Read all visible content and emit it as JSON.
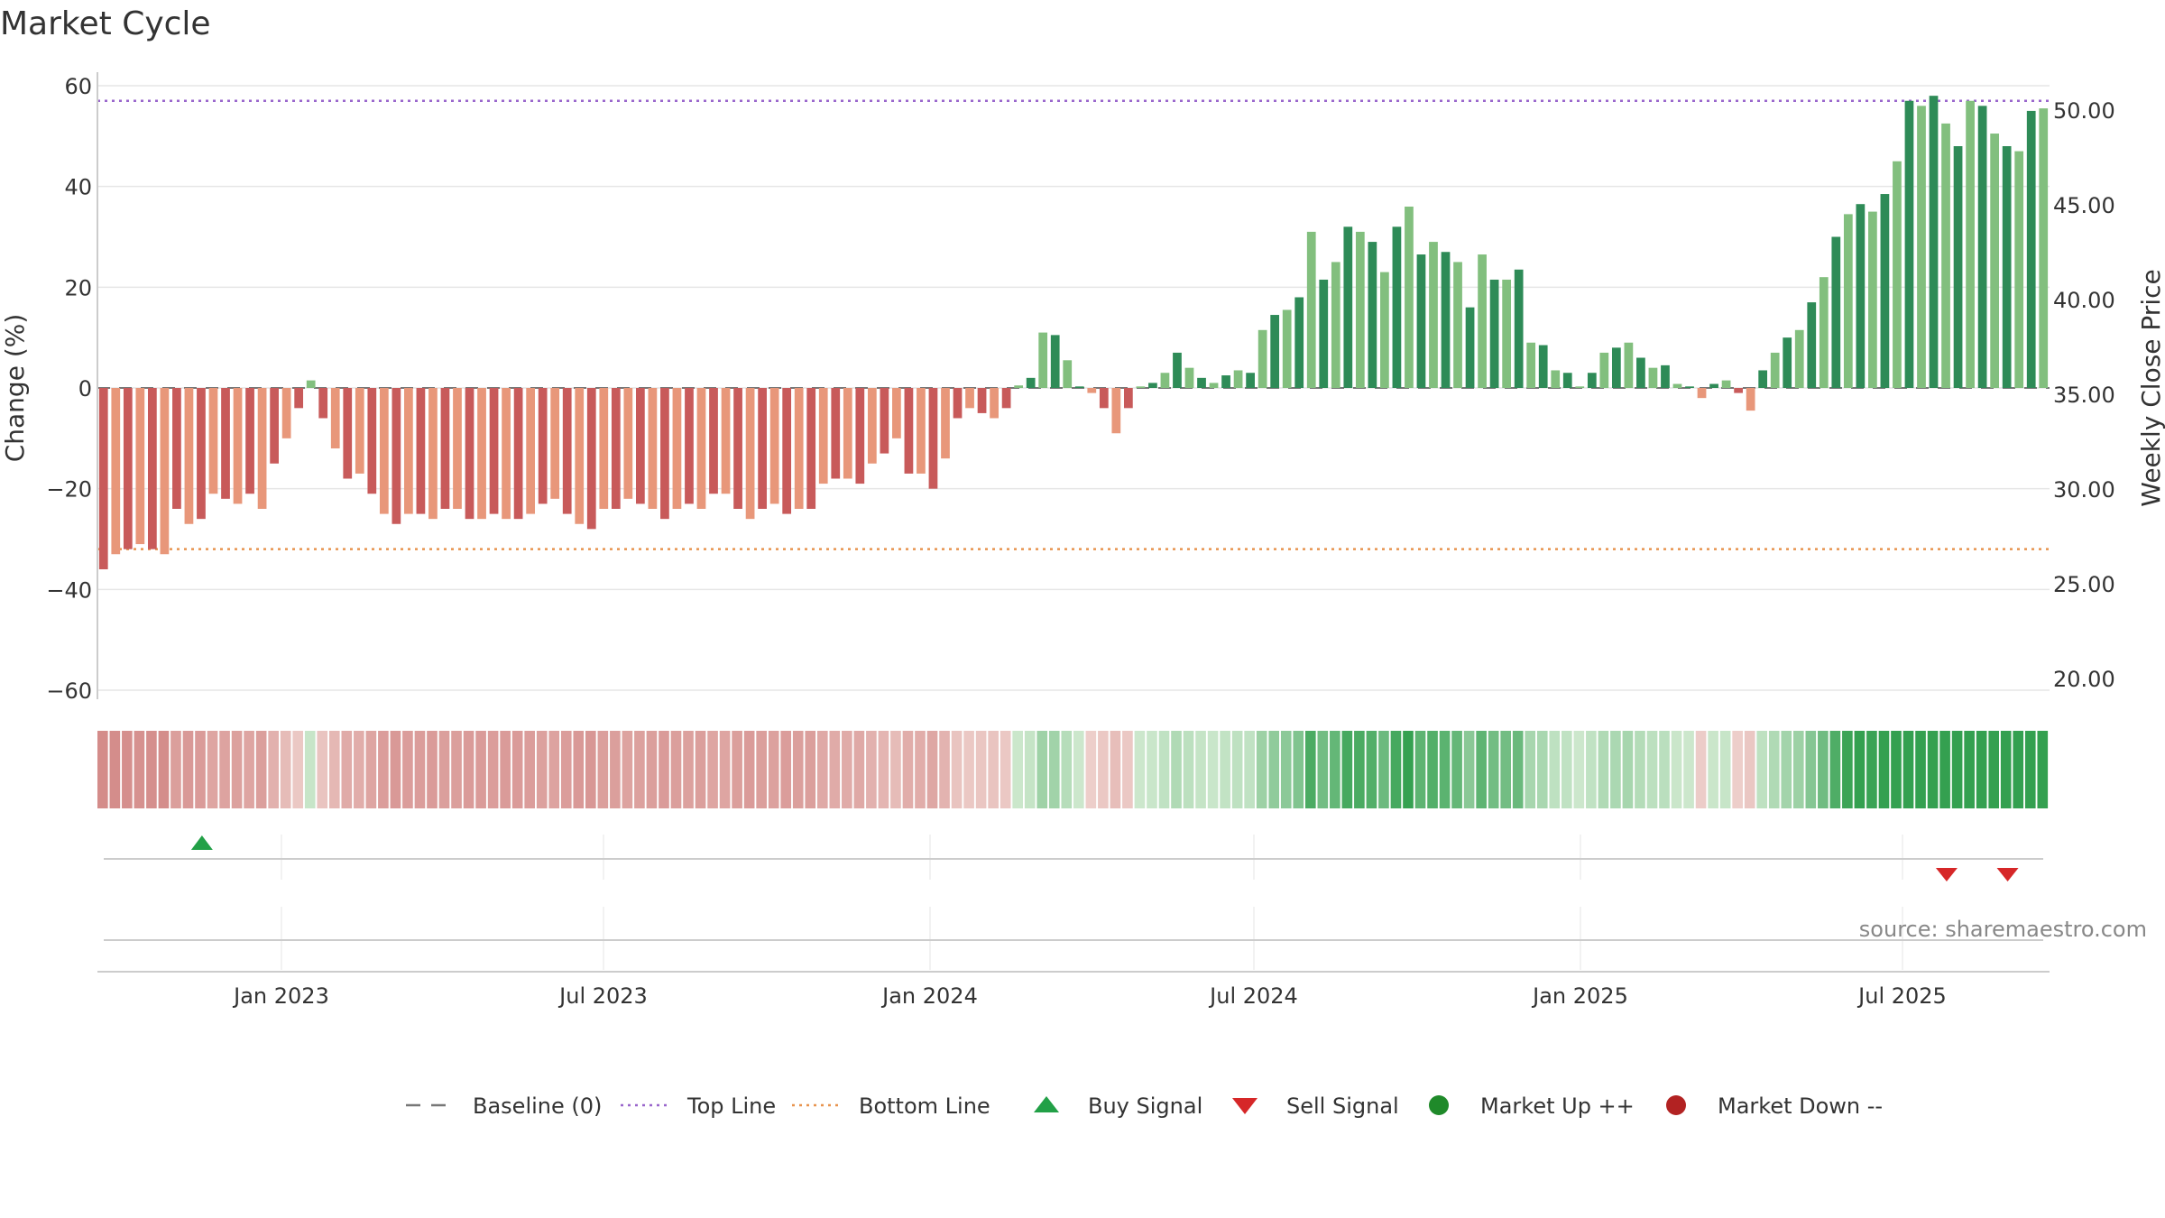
{
  "chart_data": {
    "type": "bar",
    "title": "Market Cycle",
    "ylabel_left": "Change (%)",
    "ylabel_right": "Weekly Close Price",
    "y_left_range": [
      -63,
      63
    ],
    "y_left_ticks": [
      60,
      40,
      20,
      0,
      -20,
      -40,
      -60
    ],
    "y_left_tick_labels": [
      "60",
      "40",
      "20",
      "0",
      "−20",
      "−40",
      "−60"
    ],
    "y_right_ticks": [
      50,
      45,
      40,
      35,
      30,
      25,
      20
    ],
    "y_right_tick_labels": [
      "50.00",
      "45.00",
      "40.00",
      "35.00",
      "30.00",
      "25.00",
      "20.00"
    ],
    "x_tick_labels": [
      "Jan 2023",
      "Jul 2023",
      "Jan 2024",
      "Jul 2024",
      "Jan 2025",
      "Jul 2025"
    ],
    "top_line": 57,
    "bottom_line": -32,
    "baseline": 0,
    "grid": true,
    "values": [
      -36,
      -33,
      -32,
      -31,
      -32,
      -33,
      -24,
      -27,
      -26,
      -21,
      -22,
      -23,
      -21,
      -24,
      -15,
      -10,
      -4,
      1.5,
      -6,
      -12,
      -18,
      -17,
      -21,
      -25,
      -27,
      -25,
      -25,
      -26,
      -24,
      -24,
      -26,
      -26,
      -25,
      -26,
      -26,
      -25,
      -23,
      -22,
      -25,
      -27,
      -28,
      -24,
      -24,
      -22,
      -23,
      -24,
      -26,
      -24,
      -23,
      -24,
      -21,
      -21,
      -24,
      -26,
      -24,
      -23,
      -25,
      -24,
      -24,
      -19,
      -18,
      -18,
      -19,
      -15,
      -13,
      -10,
      -17,
      -17,
      -20,
      -14,
      -6,
      -4,
      -5,
      -6,
      -4,
      0.5,
      2,
      11,
      10.5,
      5.5,
      0.3,
      -1,
      -4,
      -9,
      -4,
      0.3,
      1,
      3,
      7,
      4,
      2,
      1,
      2.5,
      3.5,
      3,
      11.5,
      14.5,
      15.5,
      18,
      31,
      21.5,
      25,
      32,
      31,
      29,
      23,
      32,
      36,
      26.5,
      29,
      27,
      25,
      16,
      26.5,
      21.5,
      21.5,
      23.5,
      9,
      8.5,
      3.5,
      3,
      0.3,
      3,
      7,
      8,
      9,
      6,
      4,
      4.5,
      0.8,
      0.3,
      -2,
      0.8,
      1.5,
      -1,
      -4.5,
      3.5,
      7,
      10,
      11.5,
      17,
      22,
      30,
      34.5,
      36.5,
      35,
      38.5,
      45,
      57,
      56,
      58,
      52.5,
      48,
      57,
      56,
      50.5,
      48,
      47,
      55,
      55.5
    ],
    "legend": [
      {
        "label": "Baseline (0)",
        "symbol": "dash",
        "color": "#777777"
      },
      {
        "label": "Top Line",
        "symbol": "dotted",
        "color": "#9966cc"
      },
      {
        "label": "Bottom Line",
        "symbol": "dotted",
        "color": "#e8944f"
      },
      {
        "label": "Buy Signal",
        "symbol": "triangle-up",
        "color": "#22a047"
      },
      {
        "label": "Sell Signal",
        "symbol": "triangle-down",
        "color": "#d62728"
      },
      {
        "label": "Market Up ++",
        "symbol": "circle",
        "color": "#1f8a2a"
      },
      {
        "label": "Market Down --",
        "symbol": "circle",
        "color": "#b22222"
      }
    ],
    "legend_placement": "bottom-center",
    "buy_signal_bars": [
      4
    ],
    "sell_signal_bars": [
      147,
      152
    ],
    "source": "source: sharemaestro.com"
  }
}
